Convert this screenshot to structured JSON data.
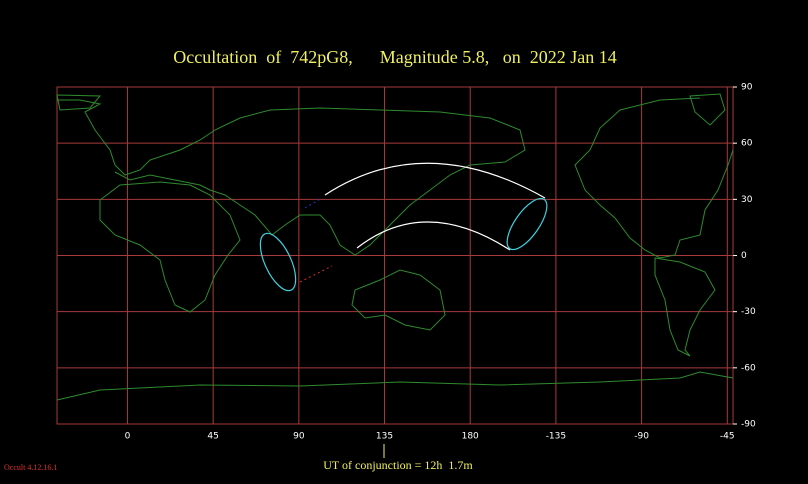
{
  "map": {
    "title": "Occultation  of  742pG8,      Magnitude 5.8,   on  2022 Jan 14",
    "xlim": [
      -37,
      318
    ],
    "ylim": [
      -90,
      90
    ],
    "xticks": [
      0,
      45,
      90,
      135,
      180,
      {
        "value": 225,
        "label": "-135"
      },
      {
        "value": 270,
        "label": "-90"
      },
      {
        "value": 315,
        "label": "-45"
      }
    ],
    "yticks": [
      90,
      60,
      30,
      0,
      -30,
      -60,
      -90
    ],
    "conjunction_label": "UT of conjunction = 12h  1.7m",
    "version": "Occult 4.12.16.1"
  }
}
